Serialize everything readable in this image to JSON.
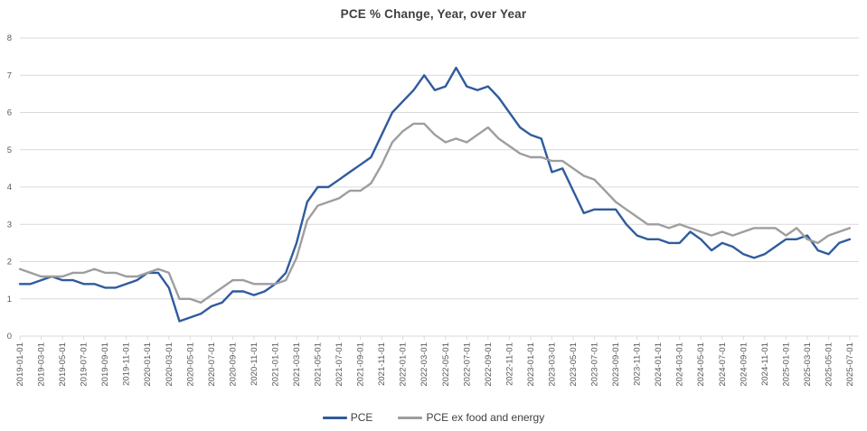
{
  "chart_data": {
    "type": "line",
    "title": "PCE % Change, Year, over Year",
    "xlabel": "",
    "ylabel": "",
    "ylim": [
      0,
      8
    ],
    "yticks": [
      0,
      1,
      2,
      3,
      4,
      5,
      6,
      7,
      8
    ],
    "xtick_every": 2,
    "grid": "horizontal-only",
    "legend_position": "bottom-center",
    "gridline_color": "#d9d9d9",
    "tick_label_color": "#595959",
    "title_color": "#404040",
    "background_color": "#ffffff",
    "x": [
      "2019-01-01",
      "2019-02-01",
      "2019-03-01",
      "2019-04-01",
      "2019-05-01",
      "2019-06-01",
      "2019-07-01",
      "2019-08-01",
      "2019-09-01",
      "2019-10-01",
      "2019-11-01",
      "2019-12-01",
      "2020-01-01",
      "2020-02-01",
      "2020-03-01",
      "2020-04-01",
      "2020-05-01",
      "2020-06-01",
      "2020-07-01",
      "2020-08-01",
      "2020-09-01",
      "2020-10-01",
      "2020-11-01",
      "2020-12-01",
      "2021-01-01",
      "2021-02-01",
      "2021-03-01",
      "2021-04-01",
      "2021-05-01",
      "2021-06-01",
      "2021-07-01",
      "2021-08-01",
      "2021-09-01",
      "2021-10-01",
      "2021-11-01",
      "2021-12-01",
      "2022-01-01",
      "2022-02-01",
      "2022-03-01",
      "2022-04-01",
      "2022-05-01",
      "2022-06-01",
      "2022-07-01",
      "2022-08-01",
      "2022-09-01",
      "2022-10-01",
      "2022-11-01",
      "2022-12-01",
      "2023-01-01",
      "2023-02-01",
      "2023-03-01",
      "2023-04-01",
      "2023-05-01",
      "2023-06-01",
      "2023-07-01",
      "2023-08-01",
      "2023-09-01",
      "2023-10-01",
      "2023-11-01",
      "2023-12-01",
      "2024-01-01",
      "2024-02-01",
      "2024-03-01",
      "2024-04-01",
      "2024-05-01",
      "2024-06-01",
      "2024-07-01",
      "2024-08-01",
      "2024-09-01",
      "2024-10-01",
      "2024-11-01",
      "2024-12-01",
      "2025-01-01",
      "2025-02-01",
      "2025-03-01",
      "2025-04-01",
      "2025-05-01",
      "2025-06-01",
      "2025-07-01"
    ],
    "series": [
      {
        "name": "PCE",
        "color": "#2f5b9d",
        "values": [
          1.4,
          1.4,
          1.5,
          1.6,
          1.5,
          1.5,
          1.4,
          1.4,
          1.3,
          1.3,
          1.4,
          1.5,
          1.7,
          1.7,
          1.3,
          0.4,
          0.5,
          0.6,
          0.8,
          0.9,
          1.2,
          1.2,
          1.1,
          1.2,
          1.4,
          1.7,
          2.5,
          3.6,
          4.0,
          4.0,
          4.2,
          4.4,
          4.6,
          4.8,
          5.4,
          6.0,
          6.3,
          6.6,
          7.0,
          6.6,
          6.7,
          7.2,
          6.7,
          6.6,
          6.7,
          6.4,
          6.0,
          5.6,
          5.4,
          5.3,
          4.4,
          4.5,
          3.9,
          3.3,
          3.4,
          3.4,
          3.4,
          3.0,
          2.7,
          2.6,
          2.6,
          2.5,
          2.5,
          2.8,
          2.6,
          2.3,
          2.5,
          2.4,
          2.2,
          2.1,
          2.2,
          2.4,
          2.6,
          2.6,
          2.7,
          2.3,
          2.2,
          2.5,
          2.6
        ]
      },
      {
        "name": "PCE ex food and energy",
        "color": "#9e9e9e",
        "values": [
          1.8,
          1.7,
          1.6,
          1.6,
          1.6,
          1.7,
          1.7,
          1.8,
          1.7,
          1.7,
          1.6,
          1.6,
          1.7,
          1.8,
          1.7,
          1.0,
          1.0,
          0.9,
          1.1,
          1.3,
          1.5,
          1.5,
          1.4,
          1.4,
          1.4,
          1.5,
          2.1,
          3.1,
          3.5,
          3.6,
          3.7,
          3.9,
          3.9,
          4.1,
          4.6,
          5.2,
          5.5,
          5.7,
          5.7,
          5.4,
          5.2,
          5.3,
          5.2,
          5.4,
          5.6,
          5.3,
          5.1,
          4.9,
          4.8,
          4.8,
          4.7,
          4.7,
          4.5,
          4.3,
          4.2,
          3.9,
          3.6,
          3.4,
          3.2,
          3.0,
          3.0,
          2.9,
          3.0,
          2.9,
          2.8,
          2.7,
          2.8,
          2.7,
          2.8,
          2.9,
          2.9,
          2.9,
          2.7,
          2.9,
          2.6,
          2.5,
          2.7,
          2.8,
          2.9
        ]
      }
    ]
  }
}
